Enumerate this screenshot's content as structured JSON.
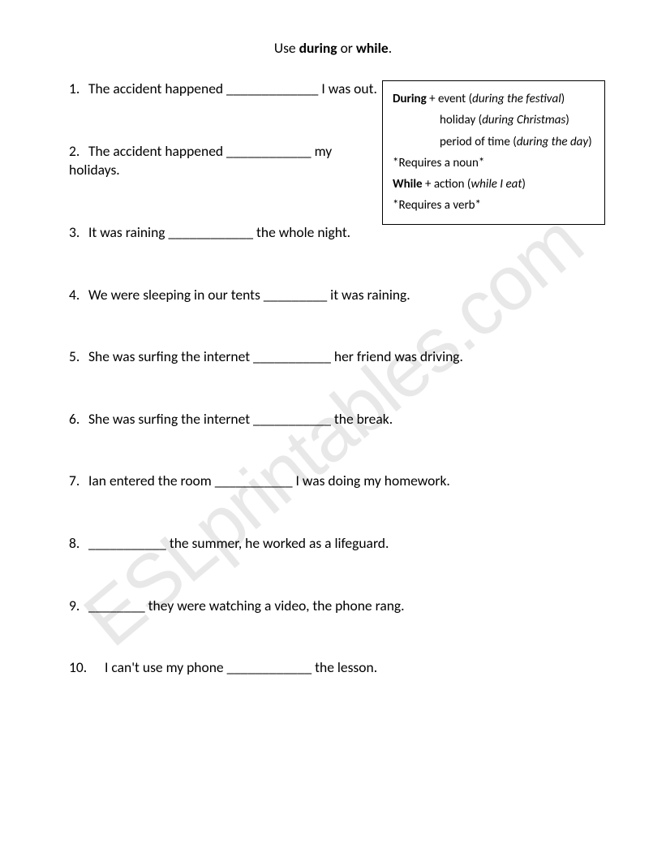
{
  "watermark": "ESLprintables.com",
  "title": {
    "prefix": "Use ",
    "word1": "during",
    "middle": " or ",
    "word2": "while",
    "suffix": "."
  },
  "questions": {
    "q1": {
      "num": "1.",
      "text": "The accident happened _____________ I was out."
    },
    "q2": {
      "num": "2.",
      "text": "The accident happened ____________ my holidays."
    },
    "q3": {
      "num": "3.",
      "text": "It was raining ____________ the whole night."
    },
    "q4": {
      "num": "4.",
      "text": "We were sleeping in our tents _________ it was raining."
    },
    "q5": {
      "num": "5.",
      "text": "She was surfing the internet ___________ her friend was driving."
    },
    "q6": {
      "num": "6.",
      "text": "She was surfing the internet ___________ the break."
    },
    "q7": {
      "num": "7.",
      "text": "Ian entered the room ___________ I was doing my homework."
    },
    "q8": {
      "num": "8.",
      "text": "___________ the summer, he worked as a lifeguard."
    },
    "q9": {
      "num": "9.",
      "text": "________ they were watching a video, the phone rang."
    },
    "q10": {
      "num": "10.",
      "text": "I can't use my phone ____________ the lesson."
    }
  },
  "infobox": {
    "during_label": "During",
    "during_line1a": " + event  (",
    "during_line1b": "during the festival",
    "during_line1c": ")",
    "during_line2a": "holiday  (",
    "during_line2b": "during Christmas",
    "during_line2c": ")",
    "during_line3a": "period of time (",
    "during_line3b": "during the day",
    "during_line3c": ")",
    "during_req": "*Requires a noun*",
    "while_label": "While",
    "while_line1a": " + action (",
    "while_line1b": "while I eat",
    "while_line1c": ")",
    "while_req": "*Requires a verb*"
  }
}
